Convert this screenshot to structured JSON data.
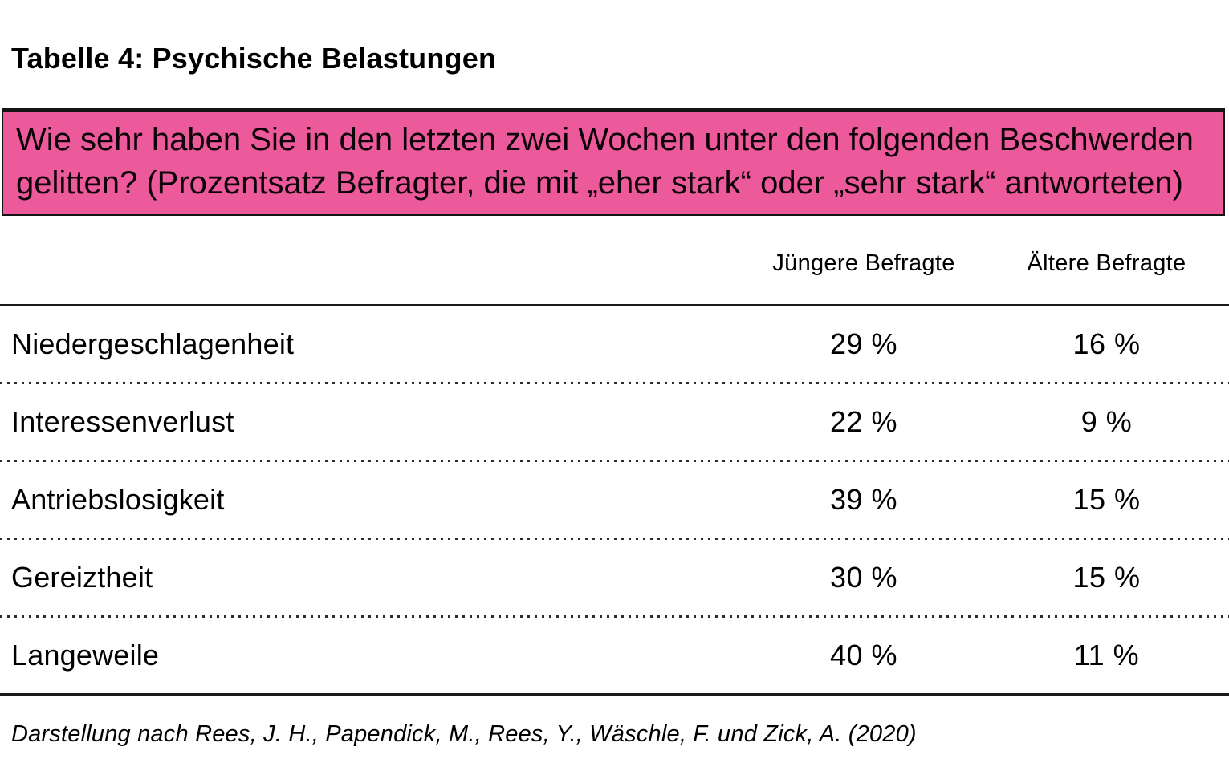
{
  "title": {
    "bold": "Tabelle 4:",
    "rest": " Psychische Belastungen"
  },
  "banner": {
    "question": "Wie sehr haben Sie in den letzten zwei Wochen unter den folgenden Beschwerden gelitten? (Prozentsatz Befragter, die mit „eher stark“ oder „sehr stark“ antworteten)",
    "background_color": "#ED5A9C",
    "border_color": "#141414"
  },
  "table": {
    "columns": [
      "Jüngere Befragte",
      "Ältere Befragte"
    ],
    "rows": [
      {
        "label": "Niedergeschlagenheit",
        "younger": "29 %",
        "older": "16 %"
      },
      {
        "label": "Interessenverlust",
        "younger": "22 %",
        "older": "9 %"
      },
      {
        "label": "Antriebslosigkeit",
        "younger": "39 %",
        "older": "15 %"
      },
      {
        "label": "Gereiztheit",
        "younger": "30 %",
        "older": "15 %"
      },
      {
        "label": "Langeweile",
        "younger": "40 %",
        "older": "11 %"
      }
    ]
  },
  "footer": {
    "citation": "Darstellung nach Rees, J. H., Papendick, M., Rees, Y., Wäschle, F. und Zick, A. (2020)"
  },
  "chart_data": {
    "type": "table",
    "title": "Tabelle 4: Psychische Belastungen",
    "question": "Wie sehr haben Sie in den letzten zwei Wochen unter den folgenden Beschwerden gelitten? (Prozentsatz Befragter, die mit „eher stark“ oder „sehr stark“ antworteten)",
    "categories": [
      "Niedergeschlagenheit",
      "Interessenverlust",
      "Antriebslosigkeit",
      "Gereiztheit",
      "Langeweile"
    ],
    "series": [
      {
        "name": "Jüngere Befragte",
        "unit": "%",
        "values": [
          29,
          22,
          39,
          30,
          40
        ]
      },
      {
        "name": "Ältere Befragte",
        "unit": "%",
        "values": [
          16,
          9,
          15,
          15,
          11
        ]
      }
    ],
    "source": "Darstellung nach Rees, J. H., Papendick, M., Rees, Y., Wäschle, F. und Zick, A. (2020)",
    "accent_color": "#ED5A9C"
  }
}
